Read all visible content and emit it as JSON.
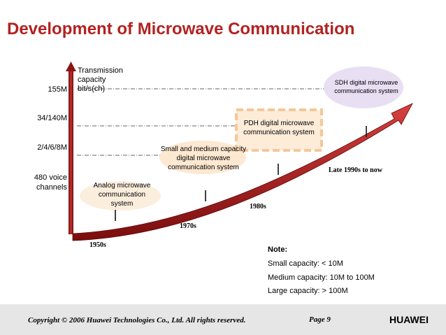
{
  "title": "Development of Microwave Communication",
  "y_axis": {
    "label": "Transmission capacity bit/s(ch)",
    "ticks": [
      "155M",
      "34/140M",
      "2/4/6/8M",
      "480 voice channels"
    ]
  },
  "eras": [
    "1950s",
    "1970s",
    "1980s",
    "Late 1990s to now"
  ],
  "stages": [
    {
      "label": "Analog microwave communication system"
    },
    {
      "label": "Small and medium capacity digital microwave communication system"
    },
    {
      "label": "PDH digital microwave communication system"
    },
    {
      "label": "SDH digital microwave communication system"
    }
  ],
  "note": {
    "heading": "Note:",
    "lines": [
      "Small capacity: < 10M",
      "Medium capacity: 10M to 100M",
      "Large capacity: > 100M"
    ]
  },
  "footer": {
    "copyright": "Copyright © 2006 Huawei Technologies Co., Ltd. All rights reserved.",
    "page": "Page 9",
    "brand": "HUAWEI"
  },
  "colors": {
    "title": "#b22222",
    "arrow": "#b01c1c",
    "brand_logo": "#e60012"
  }
}
